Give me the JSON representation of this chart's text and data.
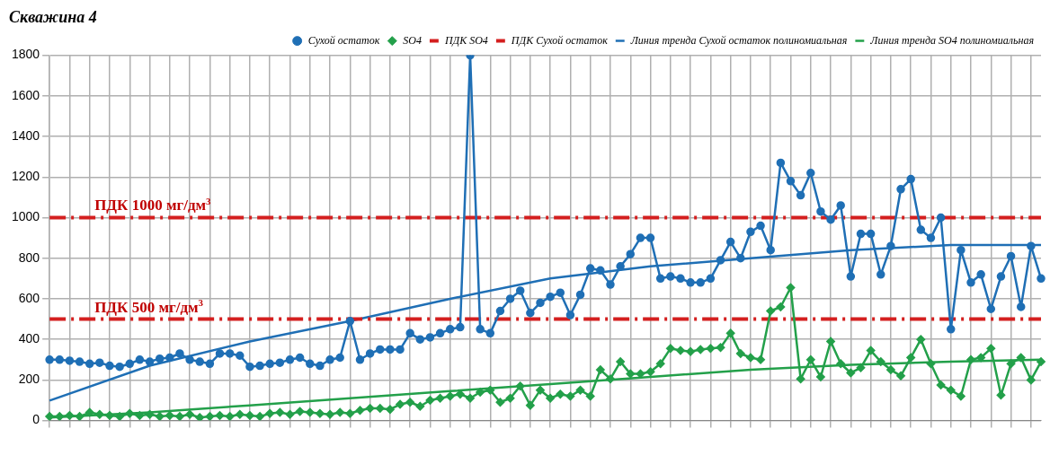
{
  "chart_data": {
    "type": "line",
    "title": "Скважина 4",
    "categories": [
      null,
      null,
      null,
      null,
      null,
      null,
      null,
      null,
      null,
      null,
      null,
      null,
      null,
      null,
      null,
      null,
      null,
      null,
      null,
      null,
      null,
      null,
      null,
      null,
      null,
      null,
      null,
      null,
      null,
      null,
      null,
      null,
      null,
      null,
      null,
      null,
      null,
      null,
      null,
      null,
      null,
      null,
      null,
      null,
      null,
      null,
      null,
      null,
      null,
      null,
      null,
      null,
      null,
      null,
      null,
      null,
      null,
      null,
      null,
      null,
      null,
      null,
      null,
      null,
      null,
      null,
      null,
      null,
      null,
      null,
      null,
      null,
      null,
      null,
      null,
      null,
      null,
      null,
      null,
      null,
      null,
      null,
      null,
      null,
      null,
      null,
      null,
      null,
      null,
      null,
      null,
      null,
      null,
      null,
      null,
      null,
      null,
      null,
      null,
      null
    ],
    "ylim": [
      0,
      1800
    ],
    "yticks": [
      0,
      200,
      400,
      600,
      800,
      1000,
      1200,
      1400,
      1600,
      1800
    ],
    "grid": true,
    "legend": "top right",
    "series": [
      {
        "name": "Сухой остаток",
        "color": "#1f6fb5",
        "marker": "circle",
        "values": [
          300,
          300,
          295,
          290,
          280,
          285,
          270,
          265,
          280,
          300,
          290,
          305,
          310,
          330,
          300,
          290,
          280,
          330,
          330,
          320,
          265,
          270,
          280,
          285,
          300,
          310,
          280,
          270,
          300,
          310,
          490,
          300,
          330,
          350,
          350,
          350,
          430,
          400,
          410,
          430,
          450,
          460,
          1800,
          450,
          430,
          540,
          600,
          640,
          530,
          580,
          610,
          630,
          520,
          620,
          750,
          740,
          670,
          760,
          820,
          900,
          900,
          700,
          710,
          700,
          680,
          680,
          700,
          790,
          880,
          800,
          930,
          960,
          840,
          1270,
          1180,
          1110,
          1220,
          1030,
          990,
          1060,
          710,
          920,
          920,
          720,
          860,
          1140,
          1190,
          940,
          900,
          1000,
          450,
          840,
          680,
          720,
          550,
          710,
          810,
          560,
          860,
          700
        ]
      },
      {
        "name": "SO4",
        "color": "#23a04a",
        "marker": "diamond",
        "values": [
          20,
          20,
          25,
          20,
          40,
          30,
          25,
          20,
          35,
          25,
          30,
          20,
          25,
          20,
          30,
          15,
          20,
          25,
          20,
          30,
          25,
          20,
          35,
          40,
          30,
          45,
          40,
          35,
          30,
          40,
          35,
          50,
          60,
          60,
          55,
          80,
          90,
          70,
          100,
          110,
          120,
          130,
          110,
          140,
          150,
          90,
          110,
          170,
          75,
          150,
          110,
          130,
          120,
          150,
          120,
          250,
          205,
          290,
          230,
          230,
          240,
          280,
          355,
          345,
          340,
          350,
          355,
          360,
          430,
          330,
          310,
          300,
          540,
          560,
          655,
          205,
          300,
          215,
          390,
          280,
          235,
          260,
          345,
          290,
          250,
          220,
          310,
          400,
          280,
          175,
          150,
          120,
          300,
          310,
          355,
          125,
          280,
          310,
          200,
          290
        ]
      },
      {
        "name": "ПДК SO4",
        "color": "#d41f1f",
        "marker": "none",
        "line_style": "dashed",
        "values": [
          500,
          500,
          500,
          500,
          500,
          500,
          500,
          500,
          500,
          500,
          500,
          500,
          500,
          500,
          500,
          500,
          500,
          500,
          500,
          500,
          500,
          500,
          500,
          500,
          500,
          500,
          500,
          500,
          500,
          500,
          500,
          500,
          500,
          500,
          500,
          500,
          500,
          500,
          500,
          500,
          500,
          500,
          500,
          500,
          500,
          500,
          500,
          500,
          500,
          500,
          500,
          500,
          500,
          500,
          500,
          500,
          500,
          500,
          500,
          500,
          500,
          500,
          500,
          500,
          500,
          500,
          500,
          500,
          500,
          500,
          500,
          500,
          500,
          500,
          500,
          500,
          500,
          500,
          500,
          500,
          500,
          500,
          500,
          500,
          500,
          500,
          500,
          500,
          500,
          500,
          500,
          500,
          500,
          500,
          500,
          500,
          500,
          500,
          500,
          500
        ]
      },
      {
        "name": "ПДК Сухой остаток",
        "color": "#d41f1f",
        "marker": "none",
        "line_style": "dashed",
        "values": [
          1000,
          1000,
          1000,
          1000,
          1000,
          1000,
          1000,
          1000,
          1000,
          1000,
          1000,
          1000,
          1000,
          1000,
          1000,
          1000,
          1000,
          1000,
          1000,
          1000,
          1000,
          1000,
          1000,
          1000,
          1000,
          1000,
          1000,
          1000,
          1000,
          1000,
          1000,
          1000,
          1000,
          1000,
          1000,
          1000,
          1000,
          1000,
          1000,
          1000,
          1000,
          1000,
          1000,
          1000,
          1000,
          1000,
          1000,
          1000,
          1000,
          1000,
          1000,
          1000,
          1000,
          1000,
          1000,
          1000,
          1000,
          1000,
          1000,
          1000,
          1000,
          1000,
          1000,
          1000,
          1000,
          1000,
          1000,
          1000,
          1000,
          1000,
          1000,
          1000,
          1000,
          1000,
          1000,
          1000,
          1000,
          1000,
          1000,
          1000,
          1000,
          1000,
          1000,
          1000,
          1000,
          1000,
          1000,
          1000,
          1000,
          1000,
          1000,
          1000,
          1000,
          1000,
          1000,
          1000,
          1000,
          1000,
          1000,
          1000
        ]
      },
      {
        "name": "Линия тренда Сухой остаток полиномиальная",
        "color": "#1f6fb5",
        "marker": "none",
        "values": [
          98,
          null,
          null,
          null,
          null,
          null,
          null,
          null,
          null,
          null,
          270,
          null,
          null,
          null,
          null,
          null,
          null,
          null,
          null,
          null,
          390,
          null,
          null,
          null,
          null,
          null,
          null,
          null,
          null,
          null,
          490,
          null,
          null,
          null,
          null,
          null,
          null,
          null,
          null,
          null,
          600,
          null,
          null,
          null,
          null,
          null,
          null,
          null,
          null,
          null,
          700,
          null,
          null,
          null,
          null,
          null,
          null,
          null,
          null,
          null,
          760,
          null,
          null,
          null,
          null,
          null,
          null,
          null,
          null,
          null,
          800,
          null,
          null,
          null,
          null,
          null,
          null,
          null,
          null,
          null,
          840,
          null,
          null,
          null,
          null,
          null,
          null,
          null,
          null,
          null,
          865,
          null,
          null,
          null,
          null,
          null,
          null,
          null,
          null,
          865
        ]
      },
      {
        "name": "Линия тренда SO4 полиномиальная",
        "color": "#23a04a",
        "marker": "none",
        "values": [
          15,
          null,
          null,
          null,
          null,
          null,
          null,
          null,
          null,
          null,
          40,
          null,
          null,
          null,
          null,
          null,
          null,
          null,
          null,
          null,
          75,
          null,
          null,
          null,
          null,
          null,
          null,
          null,
          null,
          null,
          110,
          null,
          null,
          null,
          null,
          null,
          null,
          null,
          null,
          null,
          145,
          null,
          null,
          null,
          null,
          null,
          null,
          null,
          null,
          null,
          180,
          null,
          null,
          null,
          null,
          null,
          null,
          null,
          null,
          null,
          215,
          null,
          null,
          null,
          null,
          null,
          null,
          null,
          null,
          null,
          250,
          null,
          null,
          null,
          null,
          null,
          null,
          null,
          null,
          null,
          275,
          null,
          null,
          null,
          null,
          null,
          null,
          null,
          null,
          null,
          290,
          null,
          null,
          null,
          null,
          null,
          null,
          null,
          null,
          300
        ]
      }
    ],
    "annotations": [
      {
        "text": "ПДК 1000 мг/дм$^{3}$",
        "y": 1000
      },
      {
        "text": "ПДК 500 мг/дм$^{3}$",
        "y": 500
      }
    ]
  }
}
